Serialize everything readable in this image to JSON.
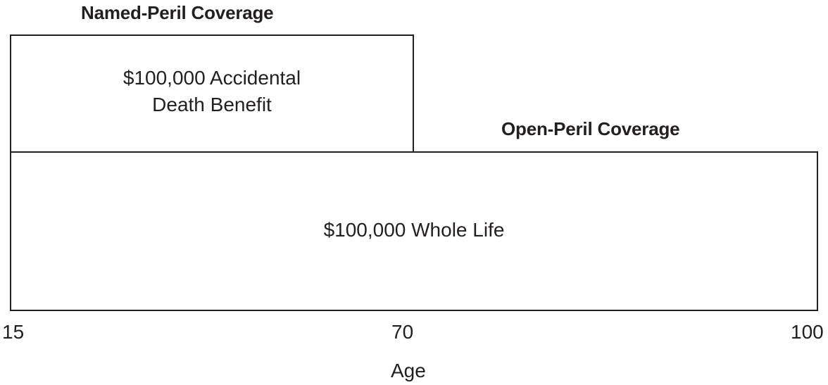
{
  "named_peril": {
    "title": "Named-Peril Coverage",
    "box_label": "$100,000 Accidental Death Benefit",
    "age_range": [
      15,
      70
    ]
  },
  "open_peril": {
    "title": "Open-Peril Coverage",
    "box_label": "$100,000 Whole Life",
    "age_range": [
      15,
      100
    ]
  },
  "axis": {
    "label": "Age",
    "ticks": [
      "15",
      "70",
      "100"
    ]
  }
}
